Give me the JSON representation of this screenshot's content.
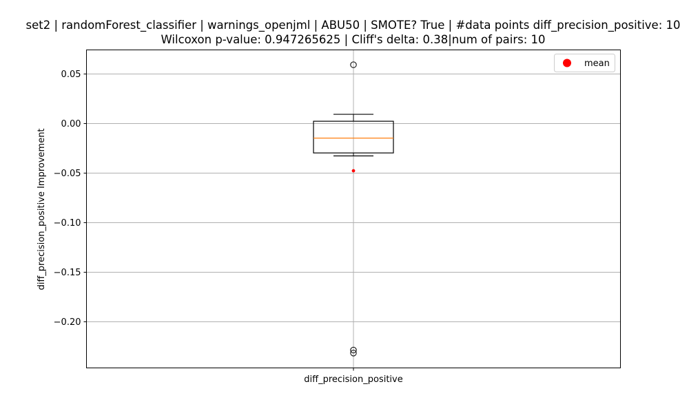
{
  "chart_data": {
    "type": "box",
    "title": "set2 | randomForest_classifier | warnings_openjml | ABU50 | SMOTE? True | #data points diff_precision_positive: 10",
    "subtitle": "Wilcoxon p-value: 0.947265625 | Cliff's delta: 0.38|num of pairs: 10",
    "xlabel": "",
    "ylabel": "diff_precision_positive Improvement",
    "categories": [
      "diff_precision_positive"
    ],
    "ylim": [
      -0.247,
      0.074
    ],
    "yticks": [
      0.05,
      0.0,
      -0.05,
      -0.1,
      -0.15,
      -0.2
    ],
    "ytick_labels": [
      "0.05",
      "0.00",
      "−0.05",
      "−0.10",
      "−0.15",
      "−0.20"
    ],
    "grid": true,
    "legend": {
      "entries": [
        "mean"
      ],
      "placement": "upper right"
    },
    "box": {
      "q1": -0.03,
      "median": -0.015,
      "q3": 0.002,
      "whisker_low": -0.033,
      "whisker_high": 0.009,
      "mean": -0.048,
      "outliers": [
        0.059,
        -0.229,
        -0.232
      ]
    },
    "colors": {
      "median": "#ff7f0e",
      "mean": "#ff0000",
      "grid": "#b0b0b0",
      "box": "#000000"
    }
  }
}
